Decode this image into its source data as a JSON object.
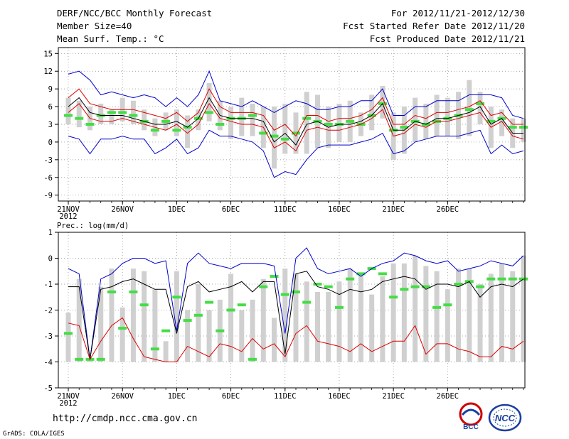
{
  "header": {
    "title": "DERF/NCC/BCC Monthly Forecast",
    "member": "Member Size=40",
    "variable": "Mean Surf. Temp.: °C",
    "period": "For 2012/11/21-2012/12/30",
    "started": "Fcst Started Refer Date 2012/11/20",
    "produced": "Fcst Produced Date 2012/11/21"
  },
  "footer": {
    "url": "http://cmdp.ncc.cma.gov.cn",
    "credit": "GrADS: COLA/IGES"
  },
  "logos": {
    "left": "BCC",
    "right": "NCC"
  },
  "colors": {
    "max_min": "#0000cc",
    "spread": "#dd0000",
    "mean": "#000000",
    "obs_bar": "#d0d0d0",
    "median": "#44dd44"
  },
  "chart_data": [
    {
      "type": "line",
      "title": "Mean Surf. Temp.: °C",
      "x_labels": [
        "21NOV",
        "26NOV",
        "1DEC",
        "6DEC",
        "11DEC",
        "16DEC",
        "21DEC",
        "26DEC"
      ],
      "year_label": "2012",
      "ylim": [
        -10,
        16
      ],
      "yticks": [
        -9,
        -6,
        -3,
        0,
        3,
        6,
        9,
        12,
        15
      ],
      "grid": true,
      "series": [
        {
          "name": "max",
          "color": "#0000cc",
          "values": [
            11.5,
            12,
            10.5,
            8,
            8.5,
            8,
            7.5,
            8,
            7.5,
            6,
            7.5,
            6,
            8,
            12,
            7,
            6.5,
            6,
            7,
            6,
            5,
            6,
            7,
            6.5,
            5.5,
            5.5,
            6,
            6,
            7,
            7,
            9,
            4.5,
            4.5,
            6,
            6,
            7,
            7,
            7,
            8,
            8,
            8,
            7.5,
            4.5,
            4
          ]
        },
        {
          "name": "upper",
          "color": "#dd0000",
          "values": [
            7.5,
            9,
            6.5,
            6,
            5.5,
            5.5,
            5.5,
            5,
            4.5,
            4,
            5,
            3.5,
            5,
            9,
            6,
            5,
            5,
            5,
            4.5,
            2,
            3,
            1,
            4.5,
            4.5,
            3.5,
            4,
            4,
            4.5,
            5.5,
            7.5,
            3,
            3,
            4.5,
            4,
            5,
            5,
            5.5,
            6,
            7,
            4.5,
            5,
            3,
            3
          ]
        },
        {
          "name": "mean",
          "color": "#000000",
          "values": [
            6,
            7.5,
            5,
            4.5,
            4.5,
            4.5,
            4,
            3.5,
            3,
            3,
            3.5,
            2.5,
            4,
            7.5,
            4.5,
            4,
            4,
            4,
            3.5,
            0,
            1.5,
            -0.5,
            3,
            3.5,
            2.5,
            3,
            3,
            3.5,
            4.5,
            6.5,
            2,
            2,
            3.5,
            3,
            4,
            4,
            4.5,
            5,
            6,
            3,
            4,
            1.5,
            1.5
          ]
        },
        {
          "name": "lower",
          "color": "#dd0000",
          "values": [
            5,
            6.5,
            4,
            3.5,
            3.5,
            4,
            3.5,
            3,
            2.5,
            2,
            3,
            1.5,
            3,
            6.5,
            4,
            3.5,
            3,
            3,
            2.5,
            -1,
            0,
            -1.5,
            2,
            2.5,
            2,
            2,
            2.5,
            3,
            4,
            5.5,
            1,
            1.5,
            3,
            2.5,
            3.5,
            3.5,
            4,
            4.5,
            5,
            2.5,
            3.5,
            1,
            0.5
          ]
        },
        {
          "name": "min",
          "color": "#0000cc",
          "values": [
            1,
            0.5,
            -2,
            0.5,
            0.5,
            1,
            0.5,
            0.5,
            -2,
            -1,
            0.5,
            -2,
            -1,
            2,
            1,
            1,
            0.5,
            0,
            -1.5,
            -6,
            -5,
            -5.5,
            -3,
            -1,
            -0.5,
            -0.5,
            -0.5,
            0,
            0.5,
            1.5,
            -2,
            -1.5,
            0,
            0.5,
            1,
            1,
            1,
            1.5,
            2,
            -2,
            -0.5,
            -2,
            -1.5
          ]
        }
      ],
      "obs_bars": [
        [
          3,
          7.5
        ],
        [
          2.5,
          7
        ],
        [
          2,
          6
        ],
        [
          3,
          6.5
        ],
        [
          3,
          5.5
        ],
        [
          3.5,
          7.5
        ],
        [
          3,
          7
        ],
        [
          2,
          5.5
        ],
        [
          1,
          4
        ],
        [
          2,
          5
        ],
        [
          1,
          5.5
        ],
        [
          -1,
          4.5
        ],
        [
          2,
          5.5
        ],
        [
          3.5,
          10
        ],
        [
          2,
          7
        ],
        [
          0.5,
          6
        ],
        [
          1,
          7.5
        ],
        [
          1,
          6.5
        ],
        [
          -1,
          6
        ],
        [
          -4.5,
          6
        ],
        [
          -2,
          6.5
        ],
        [
          -2,
          5
        ],
        [
          -2,
          8.5
        ],
        [
          -1,
          8
        ],
        [
          -1,
          6
        ],
        [
          0,
          6.5
        ],
        [
          0,
          7
        ],
        [
          1,
          5
        ],
        [
          2,
          8
        ],
        [
          4,
          9.5
        ],
        [
          -3,
          5
        ],
        [
          -2,
          6
        ],
        [
          0,
          7.5
        ],
        [
          0.5,
          6.5
        ],
        [
          1,
          8
        ],
        [
          1,
          7.5
        ],
        [
          0.5,
          8.5
        ],
        [
          1,
          10.5
        ],
        [
          3,
          8.5
        ],
        [
          -1,
          6
        ],
        [
          1,
          5.5
        ],
        [
          -1,
          4
        ],
        [
          0,
          4
        ]
      ],
      "medians": [
        4.5,
        4,
        3,
        4.5,
        5,
        5,
        4.5,
        3.5,
        2,
        3.5,
        2,
        2.5,
        4,
        5,
        3,
        4,
        4,
        4.5,
        1.5,
        1,
        0.5,
        1.5,
        4,
        3.5,
        3,
        3,
        3.5,
        3,
        4.5,
        6.5,
        2,
        2.5,
        3.5,
        3,
        3.5,
        4,
        4.5,
        5.5,
        6.5,
        3.5,
        4,
        2.5,
        2.5
      ]
    },
    {
      "type": "line",
      "title": "Prec.: log(mm/d)",
      "x_labels": [
        "21NOV",
        "26NOV",
        "1DEC",
        "6DEC",
        "11DEC",
        "16DEC",
        "21DEC",
        "26DEC"
      ],
      "year_label": "2012",
      "ylim": [
        -5,
        1
      ],
      "yticks": [
        -5,
        -4,
        -3,
        -2,
        -1,
        0,
        1
      ],
      "grid": true,
      "series": [
        {
          "name": "max",
          "color": "#0000cc",
          "values": [
            -0.4,
            -0.6,
            -3.9,
            -0.8,
            -0.6,
            -0.2,
            0,
            0,
            -0.2,
            -0.1,
            -2.8,
            -0.2,
            0.2,
            -0.2,
            -0.3,
            -0.4,
            -0.2,
            -0.2,
            -0.2,
            -0.3,
            -2.9,
            0,
            0.4,
            -0.4,
            -0.6,
            -0.5,
            -0.4,
            -0.7,
            -0.4,
            -0.2,
            -0.1,
            0.2,
            0.1,
            -0.1,
            -0.2,
            -0.1,
            -0.5,
            -0.4,
            -0.3,
            -0.1,
            -0.2,
            -0.3,
            0.1
          ]
        },
        {
          "name": "mean",
          "color": "#000000",
          "values": [
            -1.1,
            -1.1,
            -3.9,
            -1.2,
            -1.1,
            -0.9,
            -0.8,
            -1,
            -1.2,
            -1.2,
            -2.9,
            -1.1,
            -0.9,
            -1.3,
            -1.2,
            -1.1,
            -0.9,
            -1.3,
            -0.9,
            -0.9,
            -3.7,
            -0.6,
            -0.5,
            -1.1,
            -1.2,
            -1.4,
            -1.2,
            -1.3,
            -1.2,
            -0.9,
            -0.8,
            -0.7,
            -0.8,
            -1.2,
            -1,
            -1,
            -1.1,
            -0.9,
            -1.5,
            -1.1,
            -1,
            -1.1,
            -0.8
          ]
        },
        {
          "name": "min",
          "color": "#dd0000",
          "values": [
            -2.5,
            -2.6,
            -3.9,
            -3.2,
            -2.6,
            -2.3,
            -3.1,
            -3.8,
            -3.9,
            -4,
            -4,
            -3.4,
            -3.6,
            -3.8,
            -3.3,
            -3.4,
            -3.6,
            -3.1,
            -3.5,
            -3.3,
            -3.8,
            -2.9,
            -2.6,
            -3.2,
            -3.3,
            -3.4,
            -3.6,
            -3.3,
            -3.6,
            -3.4,
            -3.2,
            -3.2,
            -2.6,
            -3.7,
            -3.3,
            -3.3,
            -3.5,
            -3.6,
            -3.8,
            -3.8,
            -3.4,
            -3.5,
            -3.2
          ]
        }
      ],
      "obs_bars": [
        [
          -4,
          -2.1
        ],
        [
          -4,
          -0.8
        ],
        [
          -4,
          -3.9
        ],
        [
          -4,
          -1.1
        ],
        [
          -4,
          -0.4
        ],
        [
          -4,
          -1.9
        ],
        [
          -4,
          -0.4
        ],
        [
          -4,
          -0.5
        ],
        [
          -4,
          -1.2
        ],
        [
          -4,
          -3.2
        ],
        [
          -4,
          -0.5
        ],
        [
          -4,
          -2
        ],
        [
          -4,
          -1
        ],
        [
          -4,
          -2
        ],
        [
          -4,
          -1.6
        ],
        [
          -4,
          -0.6
        ],
        [
          -4,
          -2
        ],
        [
          -4,
          -1.6
        ],
        [
          -4,
          -0.8
        ],
        [
          -4,
          -2.3
        ],
        [
          -4,
          -0.4
        ],
        [
          -4,
          -0.6
        ],
        [
          -4,
          -0.9
        ],
        [
          -4,
          -1.3
        ],
        [
          -4,
          -1.3
        ],
        [
          -4,
          -0.9
        ],
        [
          -4,
          -0.4
        ],
        [
          -4,
          -0.6
        ],
        [
          -4,
          -1.4
        ],
        [
          -4,
          -0.7
        ],
        [
          -4,
          -0.2
        ],
        [
          -4,
          -0.2
        ],
        [
          -4,
          0.1
        ],
        [
          -4,
          -0.3
        ],
        [
          -4,
          -0.5
        ],
        [
          -4,
          -1.2
        ],
        [
          -4,
          -0.4
        ],
        [
          -4,
          -0.4
        ],
        [
          -4,
          -1
        ],
        [
          -4,
          -0.6
        ],
        [
          -4,
          -0.2
        ],
        [
          -4,
          -0.5
        ],
        [
          -4,
          0.1
        ]
      ],
      "medians": [
        -2.9,
        -3.9,
        -3.9,
        -3.9,
        -1.3,
        -2.7,
        -1.3,
        -1.8,
        -3.5,
        -2.8,
        -1.5,
        -2.4,
        -2.2,
        -1.7,
        -2.8,
        -2,
        -1.8,
        -3.9,
        -1.1,
        -0.7,
        -1.4,
        -1.3,
        -1.7,
        -1,
        -1.1,
        -1.9,
        -0.8,
        -0.6,
        -0.4,
        -0.6,
        -1.5,
        -1.2,
        -1.1,
        -1.1,
        -1.9,
        -1.8,
        -1,
        -0.9,
        -1.1,
        -0.8,
        -0.8,
        -0.8,
        -0.8
      ]
    }
  ]
}
